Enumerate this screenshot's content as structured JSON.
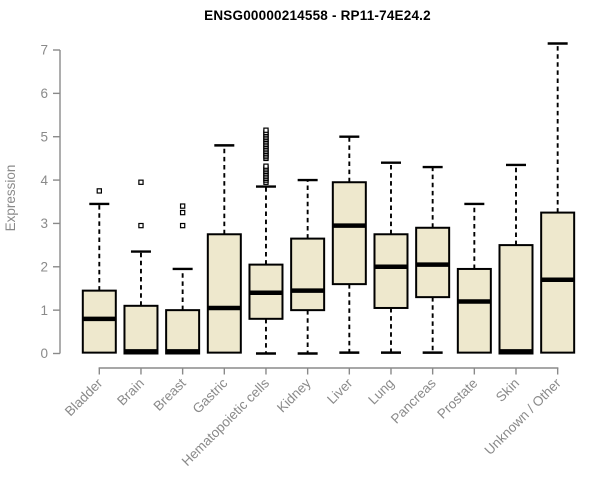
{
  "chart_data": {
    "type": "boxplot",
    "title": "ENSG00000214558 - RP11-74E24.2",
    "ylabel": "Expression",
    "xlabel": "",
    "ylim": [
      0,
      7
    ],
    "yticks": [
      0,
      1,
      2,
      3,
      4,
      5,
      6,
      7
    ],
    "grid": false,
    "legend": "none",
    "categories": [
      "Bladder",
      "Brain",
      "Breast",
      "Gastric",
      "Hematopoietic cells",
      "Kidney",
      "Liver",
      "Lung",
      "Pancreas",
      "Prostate",
      "Skin",
      "Unknown / Other"
    ],
    "series": [
      {
        "category": "Bladder",
        "whisker_low": null,
        "q1": 0.02,
        "median": 0.8,
        "q3": 1.45,
        "whisker_high": 3.45,
        "outliers": [
          3.75
        ]
      },
      {
        "category": "Brain",
        "whisker_low": null,
        "q1": 0.0,
        "median": 0.05,
        "q3": 1.1,
        "whisker_high": 2.35,
        "outliers": [
          2.95,
          3.95
        ]
      },
      {
        "category": "Breast",
        "whisker_low": null,
        "q1": 0.0,
        "median": 0.05,
        "q3": 1.0,
        "whisker_high": 1.95,
        "outliers": [
          2.95,
          3.25,
          3.4
        ]
      },
      {
        "category": "Gastric",
        "whisker_low": null,
        "q1": 0.02,
        "median": 1.05,
        "q3": 2.75,
        "whisker_high": 4.8,
        "outliers": []
      },
      {
        "category": "Hematopoietic cells",
        "whisker_low": 0.0,
        "q1": 0.8,
        "median": 1.4,
        "q3": 2.05,
        "whisker_high": 3.85,
        "outliers": [
          3.95,
          4.0,
          4.04,
          4.08,
          4.12,
          4.16,
          4.2,
          4.24,
          4.28,
          4.32,
          4.5,
          4.54,
          4.58,
          4.62,
          4.66,
          4.7,
          4.74,
          4.78,
          4.82,
          4.86,
          4.9,
          4.94,
          4.98,
          5.02,
          5.06,
          5.1,
          5.15
        ]
      },
      {
        "category": "Kidney",
        "whisker_low": 0.0,
        "q1": 1.0,
        "median": 1.45,
        "q3": 2.65,
        "whisker_high": 4.0,
        "outliers": []
      },
      {
        "category": "Liver",
        "whisker_low": 0.02,
        "q1": 1.6,
        "median": 2.95,
        "q3": 3.95,
        "whisker_high": 5.0,
        "outliers": []
      },
      {
        "category": "Lung",
        "whisker_low": 0.02,
        "q1": 1.05,
        "median": 2.0,
        "q3": 2.75,
        "whisker_high": 4.4,
        "outliers": []
      },
      {
        "category": "Pancreas",
        "whisker_low": 0.02,
        "q1": 1.3,
        "median": 2.05,
        "q3": 2.9,
        "whisker_high": 4.3,
        "outliers": []
      },
      {
        "category": "Prostate",
        "whisker_low": null,
        "q1": 0.02,
        "median": 1.2,
        "q3": 1.95,
        "whisker_high": 3.45,
        "outliers": []
      },
      {
        "category": "Skin",
        "whisker_low": null,
        "q1": 0.0,
        "median": 0.05,
        "q3": 2.5,
        "whisker_high": 4.35,
        "outliers": []
      },
      {
        "category": "Unknown / Other",
        "whisker_low": null,
        "q1": 0.02,
        "median": 1.7,
        "q3": 3.25,
        "whisker_high": 7.15,
        "outliers": []
      }
    ],
    "colors": {
      "box_fill": "#EEE8CD",
      "box_border": "#000000",
      "median": "#000000",
      "whisker": "#000000",
      "outlier_fill": "#ffffff",
      "axis": "#8a8a8a",
      "tick_label": "#8a8a8a",
      "title": "#000000",
      "background": "#ffffff"
    }
  }
}
